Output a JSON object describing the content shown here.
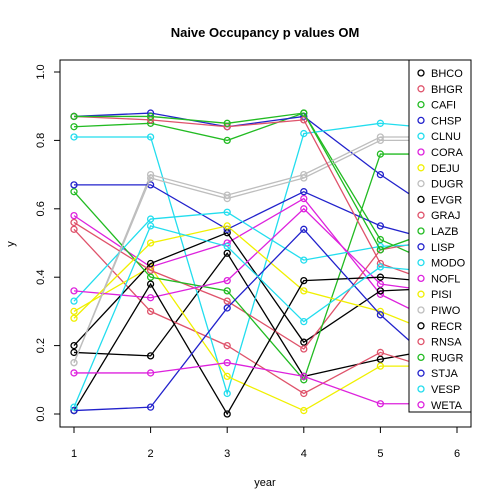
{
  "chart_data": {
    "type": "line",
    "title": "Naive Occupancy p values OM",
    "xlabel": "year",
    "ylabel": "y",
    "x": [
      1,
      2,
      3,
      4,
      5,
      6
    ],
    "xlim": [
      1,
      6
    ],
    "ylim": [
      0,
      1
    ],
    "xticks": [
      "1",
      "2",
      "3",
      "4",
      "5",
      "6"
    ],
    "yticks": [
      "0.0",
      "0.2",
      "0.4",
      "0.6",
      "0.8",
      "1.0"
    ],
    "grid": false,
    "legend_position": "top-right",
    "series": [
      {
        "name": "BHCO",
        "color": "#000000",
        "values": [
          0.18,
          0.17,
          0.47,
          0.11,
          0.16,
          0.2
        ]
      },
      {
        "name": "BHGR",
        "color": "#DF536B",
        "values": [
          0.54,
          0.3,
          0.2,
          0.06,
          0.18,
          0.11
        ]
      },
      {
        "name": "CAFI",
        "color": "#22BB22",
        "values": [
          0.84,
          0.85,
          0.8,
          0.88,
          0.51,
          0.41
        ]
      },
      {
        "name": "CHSP",
        "color": "#2222CC",
        "values": [
          0.87,
          0.88,
          0.84,
          0.87,
          0.7,
          0.55
        ]
      },
      {
        "name": "CLNU",
        "color": "#22DDEE",
        "values": [
          0.81,
          0.81,
          0.06,
          0.82,
          0.85,
          0.83
        ]
      },
      {
        "name": "CORA",
        "color": "#DD22DD",
        "values": [
          0.58,
          0.43,
          0.5,
          0.63,
          0.35,
          0.24
        ]
      },
      {
        "name": "DEJU",
        "color": "#F0F000",
        "values": [
          0.3,
          0.43,
          0.11,
          0.01,
          0.14,
          0.14
        ]
      },
      {
        "name": "DUGR",
        "color": "#BEBEBE",
        "values": [
          0.15,
          0.7,
          0.64,
          0.7,
          0.81,
          0.81
        ]
      },
      {
        "name": "EVGR",
        "color": "#000000",
        "values": [
          0.2,
          0.44,
          0.53,
          0.21,
          0.36,
          0.37
        ]
      },
      {
        "name": "GRAJ",
        "color": "#DF536B",
        "values": [
          0.56,
          0.42,
          0.33,
          0.19,
          0.48,
          0.52
        ]
      },
      {
        "name": "LAZB",
        "color": "#22BB22",
        "values": [
          0.65,
          0.4,
          0.36,
          0.1,
          0.76,
          0.76
        ]
      },
      {
        "name": "LISP",
        "color": "#2222CC",
        "values": [
          0.67,
          0.67,
          0.54,
          0.65,
          0.55,
          0.49
        ]
      },
      {
        "name": "MODO",
        "color": "#22DDEE",
        "values": [
          0.33,
          0.57,
          0.59,
          0.45,
          0.49,
          0.5
        ]
      },
      {
        "name": "NOFL",
        "color": "#DD22DD",
        "values": [
          0.36,
          0.34,
          0.39,
          0.6,
          0.38,
          0.35
        ]
      },
      {
        "name": "PISI",
        "color": "#F0F000",
        "values": [
          0.28,
          0.5,
          0.55,
          0.36,
          0.3,
          0.21
        ]
      },
      {
        "name": "PIWO",
        "color": "#BEBEBE",
        "values": [
          0.15,
          0.69,
          0.63,
          0.69,
          0.8,
          0.8
        ]
      },
      {
        "name": "RECR",
        "color": "#000000",
        "values": [
          0.01,
          0.38,
          0.0,
          0.39,
          0.4,
          0.38
        ]
      },
      {
        "name": "RNSA",
        "color": "#DF536B",
        "values": [
          0.87,
          0.86,
          0.84,
          0.86,
          0.44,
          0.36
        ]
      },
      {
        "name": "RUGR",
        "color": "#22BB22",
        "values": [
          0.87,
          0.87,
          0.85,
          0.88,
          0.48,
          0.56
        ]
      },
      {
        "name": "STJA",
        "color": "#2222CC",
        "values": [
          0.01,
          0.02,
          0.31,
          0.54,
          0.29,
          0.09
        ]
      },
      {
        "name": "VESP",
        "color": "#22DDEE",
        "values": [
          0.02,
          0.55,
          0.49,
          0.27,
          0.43,
          0.41
        ]
      },
      {
        "name": "WETA",
        "color": "#DD22DD",
        "values": [
          0.12,
          0.12,
          0.15,
          0.11,
          0.03,
          0.03
        ]
      }
    ]
  }
}
